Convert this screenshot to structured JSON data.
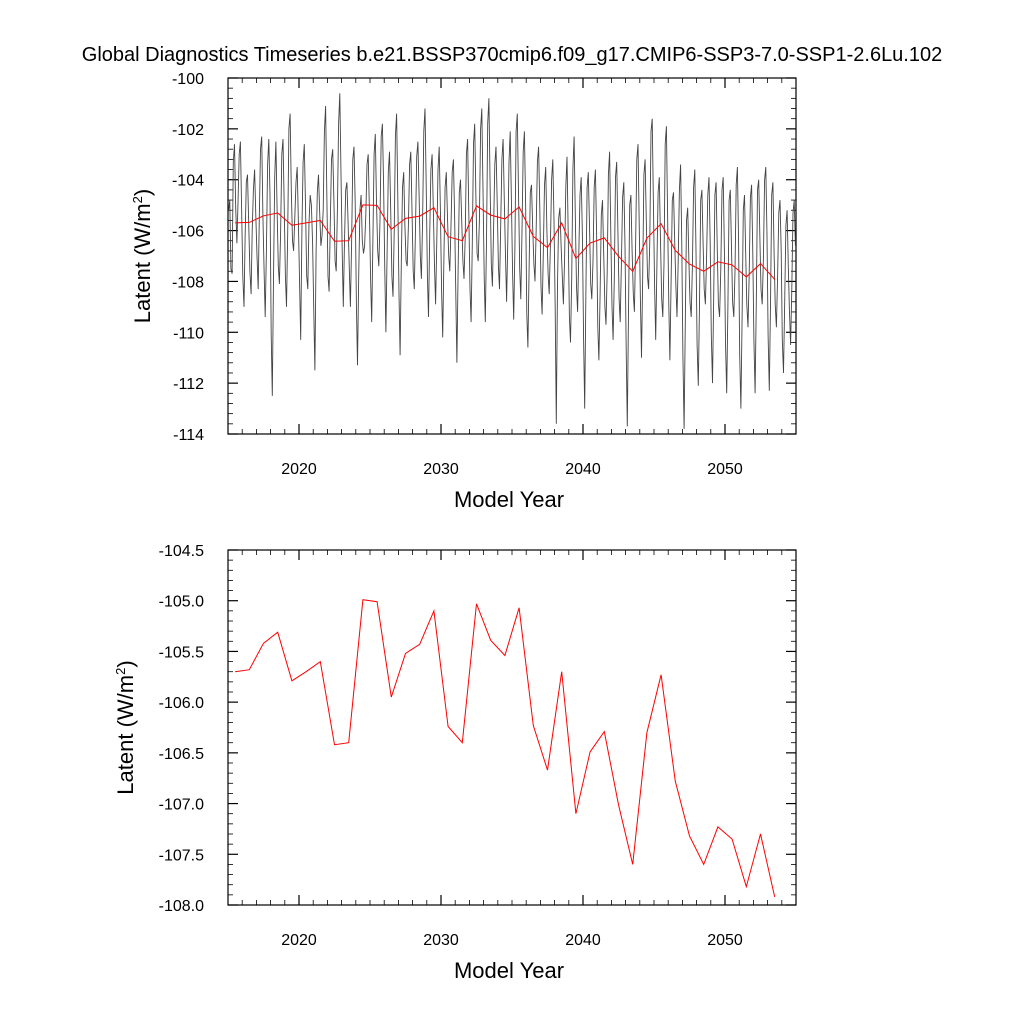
{
  "figure_title": "Global Diagnostics Timeseries b.e21.BSSP370cmip6.f09_g17.CMIP6-SSP3-7.0-SSP1-2.6Lu.102",
  "colors": {
    "monthly": "#444444",
    "annual": "#ff0000",
    "frame": "#000000"
  },
  "chart_data": [
    {
      "type": "line",
      "panel": "top",
      "xlabel": "Model Year",
      "ylabel": "Latent (W/m",
      "ylabel_sup": "2",
      "ylabel_close": ")",
      "xlim": [
        2015,
        2055
      ],
      "ylim": [
        -114,
        -100
      ],
      "xticks": [
        2020,
        2030,
        2040,
        2050
      ],
      "xtick_labels": [
        "2020",
        "2030",
        "2040",
        "2050"
      ],
      "yticks": [
        -114,
        -112,
        -110,
        -108,
        -106,
        -104,
        -102,
        -100
      ],
      "ytick_labels": [
        "-114",
        "-112",
        "-110",
        "-108",
        "-106",
        "-104",
        "-102",
        "-100"
      ],
      "series": [
        {
          "name": "monthly",
          "x_start": 2015.04,
          "x_step": 0.08333,
          "values": [
            -105.2,
            -104.8,
            -107.5,
            -107.7,
            -103.3,
            -102.6,
            -105.1,
            -106.5,
            -104.9,
            -103.0,
            -102.5,
            -105.1,
            -107.8,
            -109.0,
            -106.3,
            -104.1,
            -103.8,
            -105.7,
            -107.6,
            -108.5,
            -106.0,
            -104.4,
            -103.6,
            -105.4,
            -107.0,
            -108.3,
            -105.5,
            -102.8,
            -102.3,
            -105.4,
            -107.6,
            -109.4,
            -106.8,
            -103.4,
            -102.4,
            -104.6,
            -110.1,
            -112.5,
            -107.9,
            -103.9,
            -102.5,
            -105.2,
            -107.4,
            -108.1,
            -106.1,
            -103.0,
            -102.4,
            -105.0,
            -107.8,
            -109.0,
            -106.1,
            -102.0,
            -101.4,
            -104.4,
            -106.4,
            -106.8,
            -105.5,
            -104.1,
            -103.5,
            -105.7,
            -108.1,
            -110.3,
            -106.0,
            -103.3,
            -102.6,
            -105.0,
            -107.8,
            -108.3,
            -105.7,
            -104.6,
            -105.0,
            -106.5,
            -109.2,
            -111.5,
            -106.8,
            -104.5,
            -103.8,
            -105.3,
            -106.6,
            -106.2,
            -105.2,
            -102.1,
            -101.1,
            -104.5,
            -107.8,
            -108.4,
            -105.7,
            -103.2,
            -102.8,
            -104.8,
            -107.2,
            -107.6,
            -105.2,
            -101.8,
            -100.6,
            -103.8,
            -106.8,
            -109.0,
            -106.4,
            -104.4,
            -104.1,
            -105.7,
            -107.5,
            -109.0,
            -106.5,
            -103.2,
            -102.7,
            -104.9,
            -108.9,
            -111.3,
            -107.8,
            -105.2,
            -104.6,
            -106.4,
            -106.9,
            -106.6,
            -105.4,
            -103.4,
            -103.0,
            -105.2,
            -107.9,
            -109.6,
            -106.4,
            -103.0,
            -102.2,
            -104.9,
            -106.8,
            -107.4,
            -105.6,
            -102.3,
            -101.8,
            -104.2,
            -107.6,
            -110.0,
            -106.9,
            -103.7,
            -102.9,
            -105.2,
            -107.8,
            -108.6,
            -106.1,
            -102.3,
            -101.4,
            -104.7,
            -108.5,
            -110.9,
            -107.3,
            -104.3,
            -103.7,
            -105.8,
            -107.2,
            -107.4,
            -105.8,
            -103.4,
            -102.9,
            -105.2,
            -107.6,
            -108.3,
            -105.9,
            -103.1,
            -102.5,
            -104.6,
            -107.0,
            -107.9,
            -105.6,
            -102.1,
            -101.2,
            -104.2,
            -107.8,
            -109.4,
            -106.2,
            -103.6,
            -103.0,
            -105.1,
            -107.4,
            -108.9,
            -106.4,
            -103.6,
            -102.7,
            -105.2,
            -108.4,
            -110.2,
            -107.1,
            -104.3,
            -103.7,
            -105.5,
            -107.0,
            -107.6,
            -105.8,
            -103.7,
            -103.2,
            -105.4,
            -108.5,
            -111.2,
            -107.6,
            -104.5,
            -104.0,
            -105.6,
            -107.2,
            -107.9,
            -106.3,
            -103.0,
            -102.4,
            -105.3,
            -108.3,
            -109.6,
            -106.5,
            -102.6,
            -101.8,
            -104.7,
            -106.9,
            -107.2,
            -105.6,
            -102.0,
            -101.2,
            -104.4,
            -107.8,
            -109.6,
            -106.4,
            -101.8,
            -100.8,
            -104.2,
            -107.3,
            -108.2,
            -105.9,
            -103.4,
            -102.7,
            -104.9,
            -107.4,
            -108.3,
            -105.8,
            -103.2,
            -102.4,
            -104.8,
            -107.0,
            -108.8,
            -106.4,
            -103.3,
            -102.1,
            -104.8,
            -107.7,
            -109.5,
            -106.7,
            -102.1,
            -101.4,
            -104.5,
            -107.5,
            -108.7,
            -106.0,
            -102.9,
            -102.1,
            -104.9,
            -109.3,
            -110.6,
            -107.5,
            -104.5,
            -104.2,
            -105.9,
            -107.3,
            -108.0,
            -105.9,
            -103.3,
            -102.7,
            -105.1,
            -108.2,
            -109.3,
            -106.9,
            -104.2,
            -103.5,
            -106.0,
            -107.7,
            -108.5,
            -106.6,
            -104.0,
            -103.2,
            -105.6,
            -109.1,
            -113.6,
            -108.1,
            -105.5,
            -105.1,
            -106.6,
            -107.8,
            -108.9,
            -107.1,
            -104.3,
            -103.1,
            -106.1,
            -109.4,
            -110.4,
            -107.9,
            -103.6,
            -102.3,
            -105.4,
            -108.2,
            -109.2,
            -106.9,
            -104.6,
            -103.9,
            -106.2,
            -110.3,
            -113.0,
            -108.4,
            -104.3,
            -103.7,
            -105.8,
            -108.1,
            -108.7,
            -107.2,
            -104.3,
            -103.6,
            -106.1,
            -109.8,
            -111.1,
            -108.5,
            -105.4,
            -104.8,
            -106.9,
            -109.0,
            -109.7,
            -107.6,
            -103.8,
            -102.9,
            -106.1,
            -109.0,
            -110.3,
            -107.9,
            -103.9,
            -103.3,
            -106.0,
            -108.7,
            -109.6,
            -107.3,
            -104.7,
            -104.1,
            -106.6,
            -110.7,
            -113.7,
            -109.2,
            -105.0,
            -104.6,
            -106.8,
            -108.5,
            -109.2,
            -106.6,
            -103.2,
            -102.6,
            -105.7,
            -108.7,
            -111.0,
            -107.8,
            -103.8,
            -103.2,
            -105.6,
            -107.8,
            -108.3,
            -106.4,
            -102.1,
            -101.6,
            -104.9,
            -108.2,
            -110.3,
            -107.4,
            -104.5,
            -103.9,
            -106.4,
            -108.7,
            -109.4,
            -107.3,
            -102.6,
            -101.9,
            -105.4,
            -108.9,
            -111.1,
            -108.0,
            -104.8,
            -104.5,
            -106.4,
            -108.2,
            -109.4,
            -107.2,
            -104.4,
            -103.4,
            -106.6,
            -110.9,
            -113.8,
            -109.6,
            -105.6,
            -105.1,
            -107.2,
            -108.8,
            -109.4,
            -107.4,
            -104.3,
            -103.6,
            -106.8,
            -110.5,
            -112.1,
            -108.9,
            -104.8,
            -104.4,
            -106.5,
            -108.3,
            -108.9,
            -107.0,
            -104.6,
            -103.9,
            -106.5,
            -110.1,
            -112.0,
            -108.6,
            -104.6,
            -104.1,
            -106.8,
            -108.9,
            -109.4,
            -107.5,
            -104.4,
            -103.9,
            -106.8,
            -110.4,
            -112.4,
            -109.0,
            -104.8,
            -104.4,
            -106.7,
            -108.8,
            -109.4,
            -107.6,
            -104.2,
            -103.5,
            -106.5,
            -110.9,
            -113.0,
            -109.4,
            -105.2,
            -104.6,
            -106.9,
            -108.9,
            -109.8,
            -107.7,
            -104.7,
            -104.2,
            -106.9,
            -110.3,
            -112.4,
            -108.8,
            -104.4,
            -104.0,
            -106.3,
            -108.3,
            -108.9,
            -107.1,
            -104.0,
            -103.5,
            -106.2,
            -110.1,
            -112.3,
            -108.9,
            -104.6,
            -104.1,
            -106.9,
            -108.9,
            -109.8,
            -107.8,
            -105.3,
            -104.8,
            -106.8,
            -110.3,
            -111.6,
            -108.8,
            -105.8,
            -105.2,
            -107.4,
            -109.1,
            -110.5,
            -108.3,
            -105.3,
            -104.8,
            -106.6
          ]
        },
        {
          "name": "annual",
          "x": [
            2015.5,
            2016.5,
            2017.5,
            2018.5,
            2019.5,
            2020.5,
            2021.5,
            2022.5,
            2023.5,
            2024.5,
            2025.5,
            2026.5,
            2027.5,
            2028.5,
            2029.5,
            2030.5,
            2031.5,
            2032.5,
            2033.5,
            2034.5,
            2035.5,
            2036.5,
            2037.5,
            2038.5,
            2039.5,
            2040.5,
            2041.5,
            2042.5,
            2043.5,
            2044.5,
            2045.5,
            2046.5,
            2047.5,
            2048.5,
            2049.5,
            2050.5,
            2051.5,
            2052.5,
            2053.5
          ],
          "values": [
            -105.7,
            -105.68,
            -105.42,
            -105.31,
            -105.79,
            -105.7,
            -105.6,
            -106.42,
            -106.4,
            -104.99,
            -105.01,
            -105.95,
            -105.52,
            -105.43,
            -105.1,
            -106.24,
            -106.4,
            -105.03,
            -105.39,
            -105.54,
            -105.07,
            -106.23,
            -106.67,
            -105.7,
            -107.1,
            -106.49,
            -106.29,
            -107.01,
            -107.6,
            -106.3,
            -105.73,
            -106.78,
            -107.32,
            -107.6,
            -107.23,
            -107.35,
            -107.82,
            -107.3,
            -107.92
          ]
        }
      ]
    },
    {
      "type": "line",
      "panel": "bottom",
      "xlabel": "Model Year",
      "ylabel": "Latent (W/m",
      "ylabel_sup": "2",
      "ylabel_close": ")",
      "xlim": [
        2015,
        2055
      ],
      "ylim": [
        -108.0,
        -104.5
      ],
      "xticks": [
        2020,
        2030,
        2040,
        2050
      ],
      "xtick_labels": [
        "2020",
        "2030",
        "2040",
        "2050"
      ],
      "yticks": [
        -108.0,
        -107.5,
        -107.0,
        -106.5,
        -106.0,
        -105.5,
        -105.0,
        -104.5
      ],
      "ytick_labels": [
        "-108.0",
        "-107.5",
        "-107.0",
        "-106.5",
        "-106.0",
        "-105.5",
        "-105.0",
        "-104.5"
      ],
      "series": [
        {
          "name": "annual",
          "x": [
            2015.5,
            2016.5,
            2017.5,
            2018.5,
            2019.5,
            2020.5,
            2021.5,
            2022.5,
            2023.5,
            2024.5,
            2025.5,
            2026.5,
            2027.5,
            2028.5,
            2029.5,
            2030.5,
            2031.5,
            2032.5,
            2033.5,
            2034.5,
            2035.5,
            2036.5,
            2037.5,
            2038.5,
            2039.5,
            2040.5,
            2041.5,
            2042.5,
            2043.5,
            2044.5,
            2045.5,
            2046.5,
            2047.5,
            2048.5,
            2049.5,
            2050.5,
            2051.5,
            2052.5,
            2053.5
          ],
          "values": [
            -105.7,
            -105.68,
            -105.42,
            -105.31,
            -105.79,
            -105.7,
            -105.6,
            -106.42,
            -106.4,
            -104.99,
            -105.01,
            -105.95,
            -105.52,
            -105.43,
            -105.1,
            -106.24,
            -106.4,
            -105.03,
            -105.39,
            -105.54,
            -105.07,
            -106.23,
            -106.67,
            -105.7,
            -107.1,
            -106.49,
            -106.29,
            -107.01,
            -107.6,
            -106.3,
            -105.73,
            -106.78,
            -107.32,
            -107.6,
            -107.23,
            -107.35,
            -107.82,
            -107.3,
            -107.92
          ]
        }
      ]
    }
  ]
}
